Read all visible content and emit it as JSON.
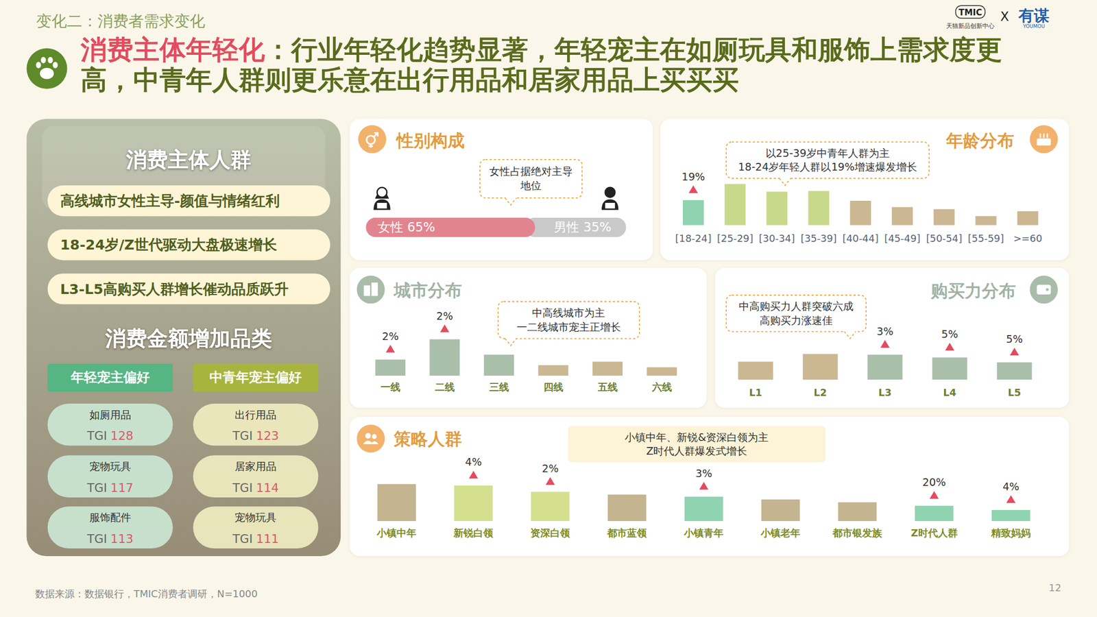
{
  "header": {
    "section": "变化二：消费者需求变化",
    "title_highlight": "消费主体年轻化",
    "title_rest": "：行业年轻化趋势显著，年轻宠主在如厕玩具和服饰上需求度更高，中青年人群则更乐意在出行用品和居家用品上买买买",
    "logos": {
      "tmic": "TMIC",
      "tmic_sub": "天猫新品创新中心",
      "times": "X",
      "youmou": "有谋",
      "youmou_sub": "YOUMOU"
    }
  },
  "left_panel": {
    "title": "消费主体人群",
    "highlights": [
      "高线城市女性主导-颜值与情绪红利",
      "18-24岁/Z世代驱动大盘极速增长",
      "L3-L5高购买人群增长催动品质跃升"
    ],
    "category_title": "消费金额增加品类",
    "tgi_label": "TGI",
    "groups": [
      {
        "name": "年轻宠主偏好",
        "items": [
          {
            "name": "如厕用品",
            "tgi": 128
          },
          {
            "name": "宠物玩具",
            "tgi": 117
          },
          {
            "name": "服饰配件",
            "tgi": 113
          }
        ]
      },
      {
        "name": "中青年宠主偏好",
        "items": [
          {
            "name": "出行用品",
            "tgi": 123
          },
          {
            "name": "居家用品",
            "tgi": 114
          },
          {
            "name": "宠物玩具",
            "tgi": 111
          }
        ]
      }
    ]
  },
  "chart_data": [
    {
      "type": "bar",
      "title": "性别构成",
      "orientation": "horizontal",
      "stacked": true,
      "data_labels": true,
      "categories": [
        "女性",
        "男性"
      ],
      "values": [
        65,
        35
      ],
      "value_labels": [
        "65%",
        "35%"
      ],
      "colors": [
        "#e2848e",
        "#c9c9c9"
      ],
      "xlim": [
        0,
        100
      ],
      "tick_labels": false,
      "annotation": [
        "女性占据绝对主导地位"
      ]
    },
    {
      "type": "bar",
      "title": "年龄分布",
      "categories": [
        "[18-24]",
        "[25-29]",
        "[30-34]",
        "[35-39]",
        "[40-44]",
        "[45-49]",
        "[50-54]",
        "[55-59]",
        ">=60"
      ],
      "values": [
        36,
        59,
        48,
        49,
        35,
        26,
        23,
        13,
        20
      ],
      "colors": [
        "#8fd3b1",
        "#c9d98b",
        "#c9d98b",
        "#c9d98b",
        "#cbb792",
        "#cbb792",
        "#cbb792",
        "#cbb792",
        "#cbb792"
      ],
      "ylim": [
        0,
        60
      ],
      "tick_labels": "x",
      "growth": [
        19,
        null,
        null,
        null,
        null,
        null,
        null,
        null,
        null
      ],
      "growth_labels": [
        "19%",
        null,
        null,
        null,
        null,
        null,
        null,
        null,
        null
      ],
      "annotation": [
        "以25-39岁中青年人群为主",
        "18-24岁年轻人群以19%增速爆发增长"
      ]
    },
    {
      "type": "bar",
      "title": "城市分布",
      "categories": [
        "一线",
        "二线",
        "三线",
        "四线",
        "五线",
        "六线"
      ],
      "values": [
        23,
        52,
        30,
        15,
        20,
        12
      ],
      "colors": [
        "#a9bfaa",
        "#a9bfaa",
        "#a9bfaa",
        "#cbb792",
        "#cbb792",
        "#cbb792"
      ],
      "ylim": [
        0,
        60
      ],
      "tick_labels": "x",
      "growth": [
        2,
        2,
        null,
        null,
        null,
        null
      ],
      "growth_labels": [
        "2%",
        "2%",
        null,
        null,
        null,
        null
      ],
      "annotation": [
        "中高线城市为主",
        "一二线城市宠主正增长"
      ]
    },
    {
      "type": "bar",
      "title": "购买力分布",
      "categories": [
        "L1",
        "L2",
        "L3",
        "L4",
        "L5"
      ],
      "values": [
        26,
        37,
        36,
        32,
        25
      ],
      "colors": [
        "#cbb792",
        "#cbb792",
        "#a9bfaa",
        "#a9bfaa",
        "#a9bfaa"
      ],
      "ylim": [
        0,
        60
      ],
      "tick_labels": "x",
      "growth": [
        null,
        null,
        3,
        5,
        5
      ],
      "growth_labels": [
        null,
        null,
        "3%",
        "5%",
        "5%"
      ],
      "annotation": [
        "中高购买力人群突破六成",
        "高购买力涨速佳"
      ]
    },
    {
      "type": "bar",
      "title": "策略人群",
      "categories": [
        "小镇中年",
        "新锐白领",
        "资深白领",
        "都市蓝领",
        "小镇青年",
        "小镇老年",
        "都市银发族",
        "Z时代人群",
        "精致妈妈"
      ],
      "values": [
        53,
        51,
        42,
        38,
        35,
        31,
        27,
        22,
        16
      ],
      "colors": [
        "#c4b48f",
        "#d4e08e",
        "#d4e08e",
        "#c4b48f",
        "#8fd3b1",
        "#c4b48f",
        "#c4b48f",
        "#8fd3b1",
        "#8fd3b1"
      ],
      "ylim": [
        0,
        60
      ],
      "tick_labels": "x",
      "growth": [
        null,
        4,
        2,
        null,
        3,
        null,
        null,
        20,
        4
      ],
      "growth_labels": [
        null,
        "4%",
        "2%",
        null,
        "3%",
        null,
        null,
        "20%",
        "4%"
      ],
      "annotation": [
        "小镇中年、新锐&资深白领为主",
        "Z时代人群爆发式增长"
      ]
    }
  ],
  "footer": {
    "source": "数据来源：数据银行，TMIC消费者调研，N=1000",
    "page": 12
  }
}
